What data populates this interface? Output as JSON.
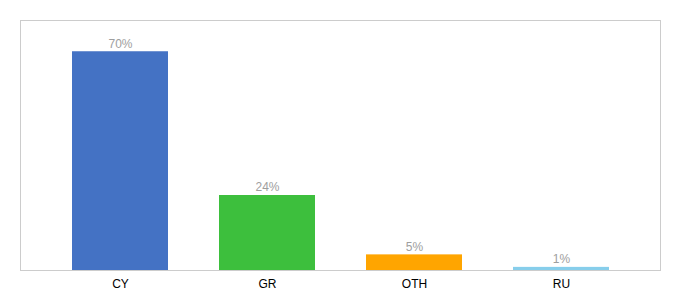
{
  "chart_data": {
    "type": "bar",
    "categories": [
      "CY",
      "GR",
      "OTH",
      "RU"
    ],
    "values": [
      70,
      24,
      5,
      1
    ],
    "colors": [
      "#4472C4",
      "#3DBF3D",
      "#FFA500",
      "#87CEEB"
    ],
    "ylim": [
      0,
      80
    ],
    "data_labels": true,
    "value_labels": [
      "70%",
      "24%",
      "5%",
      "1%"
    ],
    "tick_labels": "x"
  }
}
